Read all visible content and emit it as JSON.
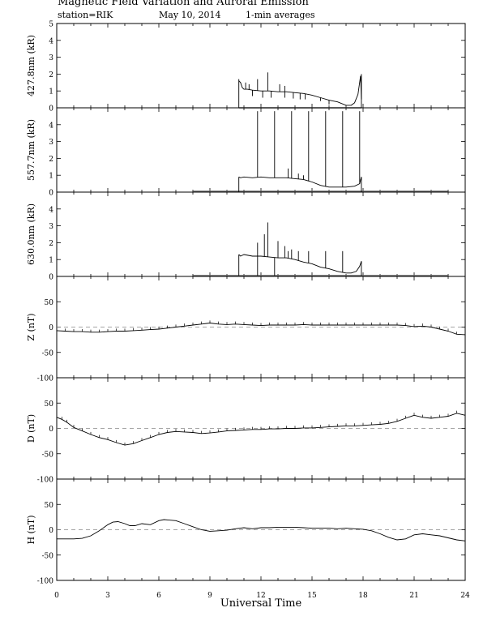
{
  "header": {
    "title": "Magnetic Field Variation and Auroral Emission",
    "station": "station=RIK",
    "date": "May 10, 2014",
    "averaging": "1-min averages"
  },
  "chart_data": {
    "type": "line",
    "xlabel": "Universal Time",
    "x_ticks": [
      0,
      3,
      6,
      9,
      12,
      15,
      18,
      21,
      24
    ],
    "x_minor_step": 1,
    "xlim": [
      0,
      24
    ],
    "panels": [
      {
        "id": "p4278",
        "ylabel": "427.8nm (kR)",
        "ylim": [
          0,
          5
        ],
        "y_ticks": [
          0,
          1,
          2,
          3,
          4,
          5
        ],
        "zero_line": false,
        "baseline": {
          "x": [
            10.7,
            17.9
          ],
          "y": 0.0
        },
        "x": [
          10.7,
          10.8,
          10.9,
          11.0,
          11.2,
          11.5,
          12.0,
          12.5,
          13.0,
          13.5,
          14.0,
          14.5,
          15.0,
          15.5,
          16.0,
          16.5,
          17.0,
          17.3,
          17.5,
          17.7,
          17.85,
          17.9
        ],
        "y": [
          1.6,
          1.5,
          1.2,
          1.1,
          1.1,
          1.05,
          1.0,
          1.0,
          0.95,
          0.95,
          0.9,
          0.85,
          0.75,
          0.6,
          0.45,
          0.35,
          0.15,
          0.15,
          0.3,
          0.8,
          1.9,
          0.5
        ],
        "spikes": [
          {
            "x": 10.7,
            "y": 1.7,
            "dir": "down",
            "to": 0.0
          },
          {
            "x": 11.1,
            "y": 1.5
          },
          {
            "x": 11.3,
            "y": 1.4
          },
          {
            "x": 11.8,
            "y": 1.7
          },
          {
            "x": 12.4,
            "y": 2.1
          },
          {
            "x": 13.1,
            "y": 1.4
          },
          {
            "x": 13.4,
            "y": 1.3
          },
          {
            "x": 11.5,
            "y": 0.7,
            "dir": "down"
          },
          {
            "x": 12.1,
            "y": 0.6,
            "dir": "down"
          },
          {
            "x": 12.6,
            "y": 0.6,
            "dir": "down"
          },
          {
            "x": 13.4,
            "y": 0.6,
            "dir": "down"
          },
          {
            "x": 13.9,
            "y": 0.55,
            "dir": "down"
          },
          {
            "x": 14.3,
            "y": 0.5,
            "dir": "down"
          },
          {
            "x": 14.6,
            "y": 0.5,
            "dir": "down"
          },
          {
            "x": 15.5,
            "y": 0.4,
            "dir": "down"
          },
          {
            "x": 16.0,
            "y": 0.2,
            "dir": "down"
          },
          {
            "x": 17.9,
            "y": 2.0,
            "dir": "down",
            "to": 0.0
          }
        ]
      },
      {
        "id": "p5577",
        "ylabel": "557.7nm (kR)",
        "ylim": [
          0,
          5
        ],
        "y_ticks": [
          0,
          1,
          2,
          3,
          4
        ],
        "zero_line": false,
        "baseline": {
          "x": [
            8.0,
            23.0
          ],
          "y": 0.05
        },
        "x": [
          10.7,
          10.8,
          11.0,
          11.5,
          12.0,
          12.5,
          13.0,
          13.5,
          14.0,
          14.5,
          15.0,
          15.5,
          16.0,
          16.5,
          17.0,
          17.5,
          17.8,
          17.9
        ],
        "y": [
          0.9,
          0.85,
          0.9,
          0.85,
          0.9,
          0.85,
          0.85,
          0.85,
          0.8,
          0.75,
          0.6,
          0.4,
          0.3,
          0.3,
          0.3,
          0.35,
          0.5,
          0.9
        ],
        "spikes": [
          {
            "x": 10.7,
            "y": 0.9,
            "dir": "down",
            "to": 0.0
          },
          {
            "x": 11.8,
            "y": 4.8
          },
          {
            "x": 12.8,
            "y": 4.8
          },
          {
            "x": 13.8,
            "y": 4.8
          },
          {
            "x": 14.8,
            "y": 4.8
          },
          {
            "x": 15.8,
            "y": 4.8
          },
          {
            "x": 16.8,
            "y": 4.8
          },
          {
            "x": 17.8,
            "y": 4.8
          },
          {
            "x": 13.6,
            "y": 1.4
          },
          {
            "x": 14.2,
            "y": 1.1
          },
          {
            "x": 14.5,
            "y": 1.0
          },
          {
            "x": 17.9,
            "y": 0.9,
            "dir": "down",
            "to": 0.0
          }
        ]
      },
      {
        "id": "p6300",
        "ylabel": "630.0nm (kR)",
        "ylim": [
          0,
          5
        ],
        "y_ticks": [
          0,
          1,
          2,
          3,
          4
        ],
        "zero_line": false,
        "baseline": {
          "x": [
            8.0,
            23.0
          ],
          "y": 0.05
        },
        "x": [
          10.7,
          10.8,
          11.0,
          11.5,
          12.0,
          12.5,
          13.0,
          13.5,
          14.0,
          14.5,
          15.0,
          15.5,
          16.0,
          16.5,
          17.0,
          17.3,
          17.6,
          17.8,
          17.9
        ],
        "y": [
          1.3,
          1.2,
          1.3,
          1.2,
          1.2,
          1.15,
          1.1,
          1.1,
          1.0,
          0.85,
          0.75,
          0.55,
          0.45,
          0.3,
          0.2,
          0.2,
          0.3,
          0.6,
          0.9
        ],
        "spikes": [
          {
            "x": 10.7,
            "y": 1.3,
            "dir": "down",
            "to": 0.05
          },
          {
            "x": 11.8,
            "y": 2.0
          },
          {
            "x": 12.2,
            "y": 2.5
          },
          {
            "x": 12.4,
            "y": 3.2
          },
          {
            "x": 13.0,
            "y": 2.1
          },
          {
            "x": 13.4,
            "y": 1.8
          },
          {
            "x": 13.6,
            "y": 1.5
          },
          {
            "x": 13.8,
            "y": 1.6
          },
          {
            "x": 14.2,
            "y": 1.5
          },
          {
            "x": 14.8,
            "y": 1.5
          },
          {
            "x": 15.8,
            "y": 1.5
          },
          {
            "x": 16.8,
            "y": 1.5
          },
          {
            "x": 11.8,
            "y": 0.05,
            "dir": "down"
          },
          {
            "x": 12.8,
            "y": 0.05,
            "dir": "down"
          },
          {
            "x": 17.9,
            "y": 0.9,
            "dir": "down",
            "to": 0.05
          }
        ]
      },
      {
        "id": "pZ",
        "ylabel": "Z (nT)",
        "ylim": [
          -100,
          100
        ],
        "y_ticks": [
          -100,
          -50,
          0,
          50
        ],
        "zero_line": true,
        "tick_marks": -5,
        "x": [
          0,
          0.5,
          1,
          1.5,
          2,
          2.5,
          3,
          3.5,
          4,
          4.5,
          5,
          5.5,
          6,
          6.5,
          7,
          7.5,
          8,
          8.5,
          9,
          9.5,
          10,
          10.5,
          11,
          11.5,
          12,
          12.5,
          13,
          13.5,
          14,
          14.5,
          15,
          15.5,
          16,
          16.5,
          17,
          17.5,
          18,
          18.5,
          19,
          19.5,
          20,
          20.5,
          21,
          21.5,
          22,
          22.5,
          23,
          23.5,
          24
        ],
        "y": [
          -7,
          -8,
          -9,
          -9,
          -10,
          -10,
          -9,
          -8,
          -8,
          -7,
          -6,
          -5,
          -4,
          -2,
          0,
          2,
          4,
          6,
          8,
          6,
          5,
          6,
          5,
          4,
          3,
          4,
          4,
          4,
          4,
          5,
          4,
          4,
          4,
          4,
          4,
          4,
          4,
          4,
          4,
          4,
          4,
          3,
          1,
          2,
          0,
          -4,
          -8,
          -14,
          -15
        ]
      },
      {
        "id": "pD",
        "ylabel": "D (nT)",
        "ylim": [
          -100,
          100
        ],
        "y_ticks": [
          -100,
          -50,
          0,
          50
        ],
        "zero_line": true,
        "tick_marks": -5,
        "x": [
          0,
          0.3,
          0.6,
          1,
          1.5,
          2,
          2.5,
          3,
          3.5,
          4,
          4.5,
          5,
          5.5,
          6,
          6.5,
          7,
          7.5,
          8,
          8.5,
          9,
          9.5,
          10,
          10.5,
          11,
          11.5,
          12,
          12.5,
          13,
          13.5,
          14,
          14.5,
          15,
          15.5,
          16,
          16.5,
          17,
          17.5,
          18,
          18.5,
          19,
          19.5,
          20,
          20.5,
          21,
          21.5,
          22,
          22.5,
          23,
          23.5,
          24
        ],
        "y": [
          22,
          18,
          12,
          2,
          -5,
          -12,
          -18,
          -22,
          -28,
          -33,
          -30,
          -24,
          -18,
          -12,
          -8,
          -6,
          -7,
          -8,
          -10,
          -9,
          -7,
          -5,
          -4,
          -3,
          -2,
          -2,
          -1,
          -1,
          0,
          0,
          1,
          1,
          2,
          3,
          4,
          5,
          5,
          6,
          7,
          8,
          10,
          14,
          20,
          26,
          22,
          20,
          22,
          24,
          30,
          26
        ]
      },
      {
        "id": "pH",
        "ylabel": "H (nT)",
        "ylim": [
          -100,
          100
        ],
        "y_ticks": [
          -100,
          -50,
          0,
          50
        ],
        "zero_line": true,
        "x": [
          0,
          0.5,
          1,
          1.5,
          2,
          2.5,
          3,
          3.3,
          3.6,
          4,
          4.3,
          4.6,
          5,
          5.5,
          6,
          6.3,
          6.6,
          7,
          7.5,
          8,
          8.5,
          9,
          9.5,
          10,
          10.5,
          11,
          11.5,
          12,
          12.5,
          13,
          13.5,
          14,
          14.5,
          15,
          15.5,
          16,
          16.5,
          17,
          17.5,
          18,
          18.5,
          19,
          19.5,
          20,
          20.5,
          21,
          21.5,
          22,
          22.5,
          23,
          23.5,
          24
        ],
        "y": [
          -18,
          -18,
          -18,
          -17,
          -12,
          -2,
          10,
          15,
          16,
          12,
          8,
          8,
          12,
          10,
          18,
          20,
          19,
          18,
          12,
          6,
          0,
          -3,
          -2,
          -1,
          2,
          4,
          2,
          4,
          4,
          5,
          5,
          5,
          4,
          3,
          3,
          3,
          2,
          3,
          2,
          1,
          -2,
          -8,
          -15,
          -20,
          -18,
          -10,
          -8,
          -10,
          -12,
          -16,
          -20,
          -22
        ]
      }
    ]
  }
}
